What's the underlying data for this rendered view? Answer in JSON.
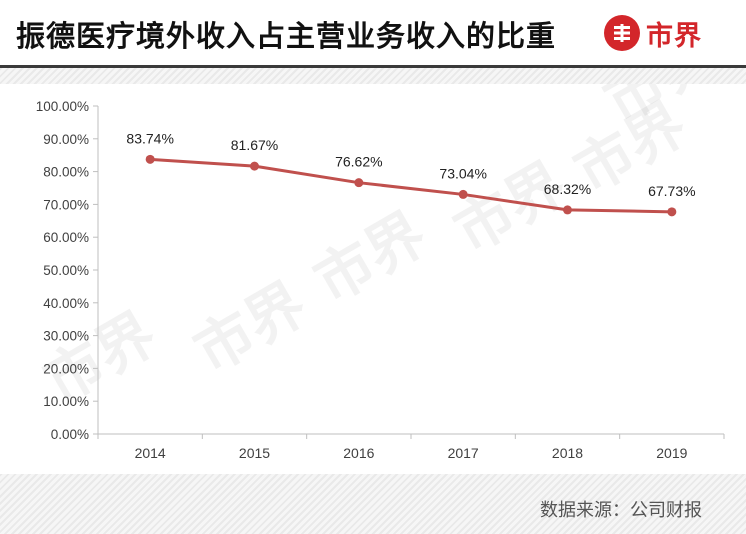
{
  "header": {
    "title": "振德医疗境外收入占主营业务收入的比重",
    "brand": "市界"
  },
  "footer": {
    "source": "数据来源：公司财报"
  },
  "watermark": {
    "text": "市界"
  },
  "colors": {
    "line": "#c0504d",
    "brand_red": "#d3262a",
    "axis": "#bfbfbf",
    "text": "#404040"
  },
  "chart_data": {
    "type": "line",
    "categories": [
      "2014",
      "2015",
      "2016",
      "2017",
      "2018",
      "2019"
    ],
    "values": [
      83.74,
      81.67,
      76.62,
      73.04,
      68.32,
      67.73
    ],
    "data_labels": [
      "83.74%",
      "81.67%",
      "76.62%",
      "73.04%",
      "68.32%",
      "67.73%"
    ],
    "ylim": [
      0,
      100
    ],
    "yticks": [
      "0.00%",
      "10.00%",
      "20.00%",
      "30.00%",
      "40.00%",
      "50.00%",
      "60.00%",
      "70.00%",
      "80.00%",
      "90.00%",
      "100.00%"
    ],
    "grid": false,
    "legend": "none"
  }
}
